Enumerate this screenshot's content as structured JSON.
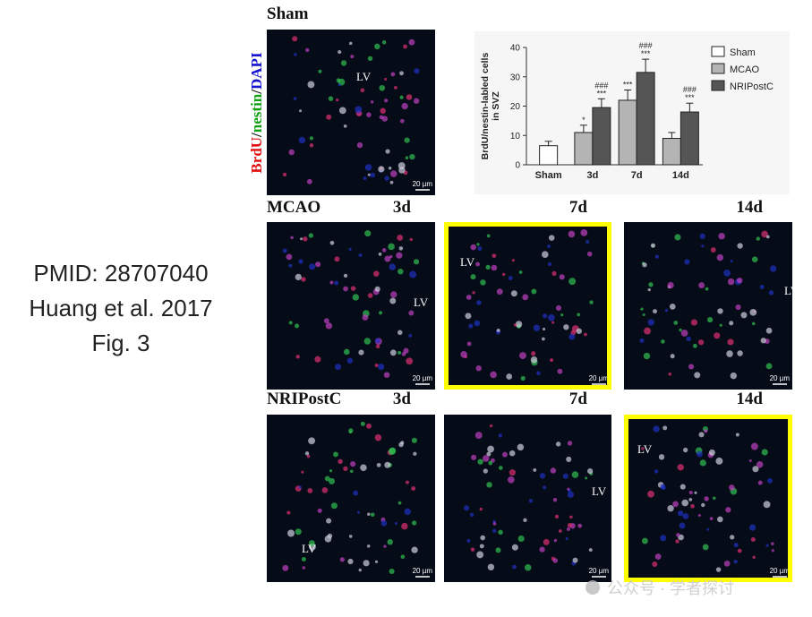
{
  "slide_text": [
    "PMID: 28707040",
    "Huang et al. 2017",
    "Fig. 3"
  ],
  "stain_label": [
    "BrdU",
    "/",
    "nestin",
    "/",
    "DAPI"
  ],
  "rows": [
    {
      "label": "Sham",
      "images": [
        {
          "lv": "LV",
          "scale": "20 µm"
        }
      ]
    },
    {
      "label": "MCAO",
      "images": [
        {
          "time": "3d",
          "lv": "LV",
          "scale": "20 µm"
        },
        {
          "time": "7d",
          "lv": "LV",
          "scale": "20 µm"
        },
        {
          "time": "14d",
          "lv": "LV",
          "scale": "20 µm"
        }
      ]
    },
    {
      "label": "NRIPostC",
      "images": [
        {
          "time": "3d",
          "lv": "LV",
          "scale": "20 µm"
        },
        {
          "time": "7d",
          "lv": "LV",
          "scale": "20 µm"
        },
        {
          "time": "14d",
          "lv": "LV",
          "scale": "20 µm"
        }
      ]
    }
  ],
  "watermark": "公众号 · 学者探讨",
  "chart_data": {
    "type": "bar",
    "y_label": [
      "BrdU/nestin-labled cells",
      "in SVZ"
    ],
    "categories": [
      "Sham",
      "3d",
      "7d",
      "14d"
    ],
    "series": [
      {
        "name": "Sham",
        "color": "#ffffff",
        "values": [
          6.5,
          null,
          null,
          null
        ],
        "errors": [
          1.5,
          null,
          null,
          null
        ]
      },
      {
        "name": "MCAO",
        "color": "#b4b4b4",
        "values": [
          null,
          11,
          22,
          9
        ],
        "errors": [
          null,
          2.5,
          3.5,
          2
        ],
        "significance": [
          null,
          [
            "*"
          ],
          [
            "***"
          ],
          null
        ]
      },
      {
        "name": "NRIPostC",
        "color": "#555555",
        "values": [
          null,
          19.5,
          31.5,
          18
        ],
        "errors": [
          null,
          3,
          4.5,
          3
        ],
        "significance": [
          null,
          [
            "###",
            "***"
          ],
          [
            "###",
            "***"
          ],
          [
            "###",
            "***"
          ]
        ]
      }
    ],
    "ylim": [
      0,
      40
    ],
    "yticks": [
      0,
      10,
      20,
      30,
      40
    ],
    "legend": "right"
  }
}
